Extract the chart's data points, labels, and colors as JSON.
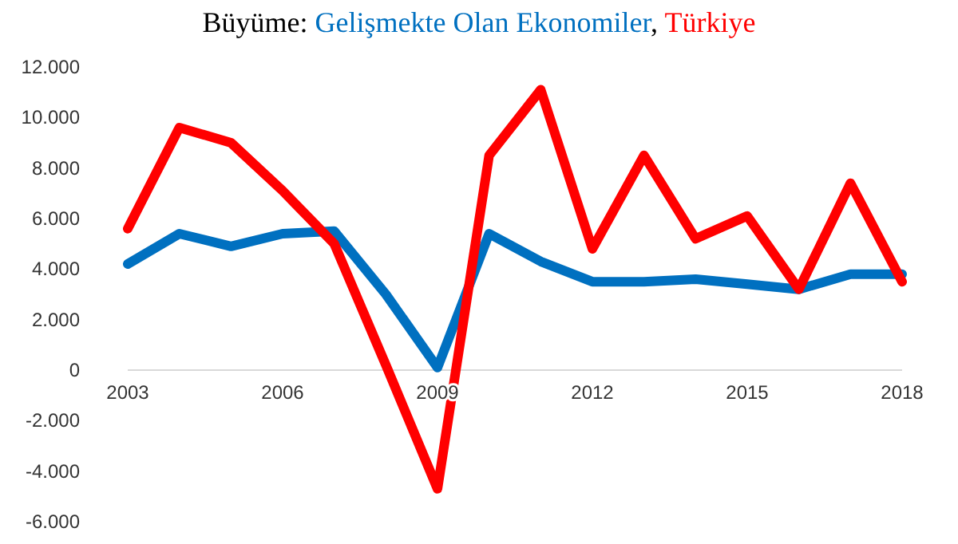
{
  "chart_data": {
    "type": "line",
    "title": "Büyüme:",
    "x": [
      2003,
      2004,
      2005,
      2006,
      2007,
      2008,
      2009,
      2010,
      2011,
      2012,
      2013,
      2014,
      2015,
      2016,
      2017,
      2018
    ],
    "series": [
      {
        "name": "Gelişmekte Olan Ekonomiler",
        "color": "#0070c0",
        "values": [
          4200,
          5400,
          4900,
          5400,
          5500,
          3000,
          100,
          5400,
          4300,
          3500,
          3500,
          3600,
          3400,
          3200,
          3800,
          3800
        ]
      },
      {
        "name": "Türkiye",
        "color": "#ff0000",
        "values": [
          5600,
          9600,
          9000,
          7100,
          5000,
          200,
          -4700,
          8500,
          11100,
          4800,
          8500,
          5200,
          6100,
          3200,
          7400,
          3500
        ]
      }
    ],
    "xlim": [
      2003,
      2018
    ],
    "xticks": [
      2003,
      2006,
      2009,
      2012,
      2015,
      2018
    ],
    "ylim": [
      -6000,
      12000
    ],
    "yticks": [
      {
        "value": -6000,
        "label": "-6.000"
      },
      {
        "value": -4000,
        "label": "-4.000"
      },
      {
        "value": -2000,
        "label": "-2.000"
      },
      {
        "value": 0,
        "label": "0"
      },
      {
        "value": 2000,
        "label": "2.000"
      },
      {
        "value": 4000,
        "label": "4.000"
      },
      {
        "value": 6000,
        "label": "6.000"
      },
      {
        "value": 8000,
        "label": "8.000"
      },
      {
        "value": 10000,
        "label": "10.000"
      },
      {
        "value": 12000,
        "label": "12.000"
      }
    ],
    "annotations": [
      ","
    ],
    "legend": "top",
    "grid": false,
    "marker": "none",
    "line_style": "solid"
  }
}
